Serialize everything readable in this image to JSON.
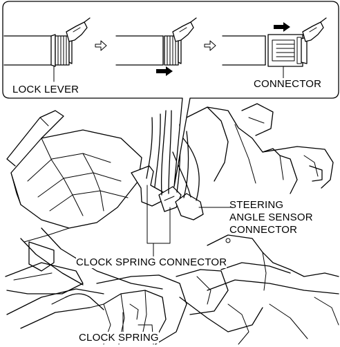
{
  "labels": {
    "lock_lever": "LOCK LEVER",
    "connector": "CONNECTOR",
    "steering_angle_sensor_connector": [
      "STEERING",
      "ANGLE SENSOR",
      "CONNECTOR"
    ],
    "clock_spring_connector": "CLOCK SPRING CONNECTOR",
    "clock_spring": "CLOCK SPRING"
  },
  "icons": {
    "step_arrow": "hollow-right-arrow",
    "push_arrow": "solid-right-arrow"
  }
}
